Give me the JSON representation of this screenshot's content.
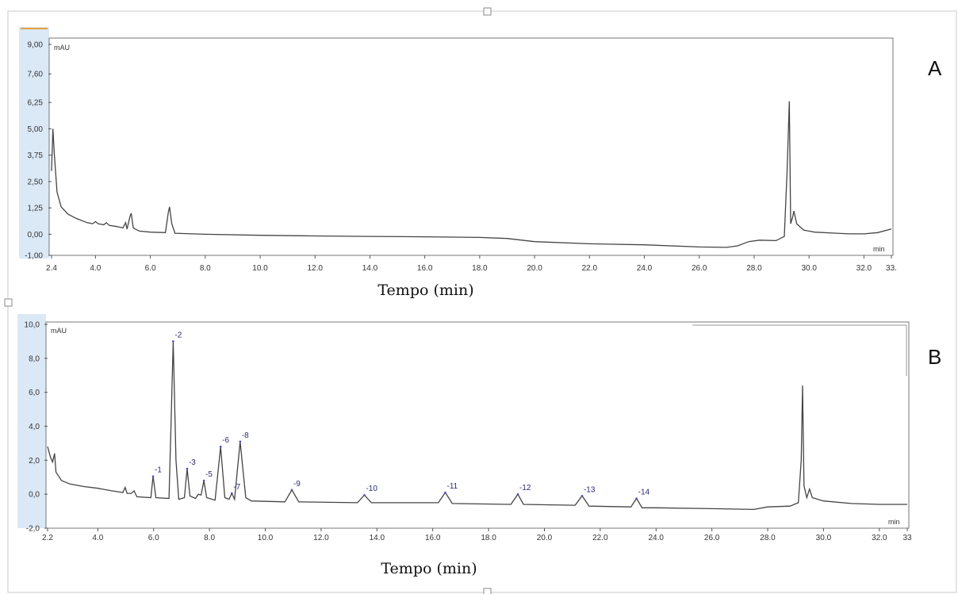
{
  "colors": {
    "trace": "#444444",
    "axis_band": "#dbe8f6",
    "peak_label": "#2a2a7a",
    "baseline_marker": "#4a4ad0"
  },
  "chart_data": [
    {
      "type": "line",
      "panel": "A",
      "xlabel": "Tempo (min)",
      "y_unit": "mAU",
      "x_unit": "min",
      "xlim": [
        2.4,
        33.0
      ],
      "ylim": [
        -1.0,
        9.0
      ],
      "x_tick_labels": [
        "2.4",
        "4.0",
        "6.0",
        "8.0",
        "10.0",
        "12.0",
        "14.0",
        "16.0",
        "18.0",
        "20.0",
        "22.0",
        "24.0",
        "26.0",
        "28.0",
        "30.0",
        "32.0",
        "33."
      ],
      "x_tick_values": [
        2.4,
        4,
        6,
        8,
        10,
        12,
        14,
        16,
        18,
        20,
        22,
        24,
        26,
        28,
        30,
        32,
        33
      ],
      "y_tick_labels": [
        "9,00",
        "7,60",
        "6,25",
        "5,00",
        "3,75",
        "2,50",
        "1,25",
        "0,00",
        "-1,00"
      ],
      "y_tick_values": [
        9.0,
        7.6,
        6.25,
        5.0,
        3.75,
        2.5,
        1.25,
        0.0,
        -1.0
      ],
      "series": [
        {
          "points": [
            [
              2.4,
              3.0
            ],
            [
              2.45,
              5.0
            ],
            [
              2.5,
              3.8
            ],
            [
              2.6,
              2.0
            ],
            [
              2.75,
              1.3
            ],
            [
              3.0,
              0.95
            ],
            [
              3.3,
              0.75
            ],
            [
              3.7,
              0.55
            ],
            [
              3.9,
              0.5
            ],
            [
              4.0,
              0.6
            ],
            [
              4.1,
              0.5
            ],
            [
              4.3,
              0.45
            ],
            [
              4.4,
              0.55
            ],
            [
              4.5,
              0.42
            ],
            [
              4.8,
              0.36
            ],
            [
              5.0,
              0.3
            ],
            [
              5.1,
              0.55
            ],
            [
              5.15,
              0.25
            ],
            [
              5.25,
              0.8
            ],
            [
              5.3,
              1.0
            ],
            [
              5.38,
              0.3
            ],
            [
              5.6,
              0.15
            ],
            [
              6.0,
              0.1
            ],
            [
              6.55,
              0.08
            ],
            [
              6.65,
              1.0
            ],
            [
              6.7,
              1.3
            ],
            [
              6.78,
              0.5
            ],
            [
              6.9,
              0.05
            ],
            [
              8.0,
              0.0
            ],
            [
              10.0,
              -0.05
            ],
            [
              12.0,
              -0.08
            ],
            [
              14.0,
              -0.1
            ],
            [
              16.0,
              -0.12
            ],
            [
              18.0,
              -0.15
            ],
            [
              19.0,
              -0.2
            ],
            [
              20.0,
              -0.35
            ],
            [
              22.0,
              -0.45
            ],
            [
              24.0,
              -0.5
            ],
            [
              26.0,
              -0.6
            ],
            [
              27.0,
              -0.62
            ],
            [
              27.4,
              -0.55
            ],
            [
              27.8,
              -0.35
            ],
            [
              28.2,
              -0.28
            ],
            [
              28.8,
              -0.3
            ],
            [
              29.1,
              -0.1
            ],
            [
              29.2,
              3.0
            ],
            [
              29.28,
              6.3
            ],
            [
              29.33,
              0.5
            ],
            [
              29.4,
              0.8
            ],
            [
              29.45,
              1.1
            ],
            [
              29.55,
              0.5
            ],
            [
              29.8,
              0.2
            ],
            [
              30.2,
              0.1
            ],
            [
              31.0,
              0.05
            ],
            [
              31.5,
              0.02
            ],
            [
              32.0,
              0.02
            ],
            [
              32.5,
              0.08
            ],
            [
              33.0,
              0.25
            ]
          ]
        }
      ]
    },
    {
      "type": "line",
      "panel": "B",
      "xlabel": "Tempo (min)",
      "y_unit": "mAU",
      "x_unit": "min",
      "xlim": [
        2.2,
        33.0
      ],
      "ylim": [
        -2.0,
        10.0
      ],
      "x_tick_labels": [
        "2.2",
        "4.0",
        "6.0",
        "8.0",
        "10.0",
        "12.0",
        "14.0",
        "16.0",
        "18.0",
        "20.0",
        "22.0",
        "24.0",
        "26.0",
        "28.0",
        "30.0",
        "32.0",
        "33"
      ],
      "x_tick_values": [
        2.2,
        4,
        6,
        8,
        10,
        12,
        14,
        16,
        18,
        20,
        22,
        24,
        26,
        28,
        30,
        32,
        33
      ],
      "y_tick_labels": [
        "10,0",
        "8,0",
        "6,0",
        "4,0",
        "2,0",
        "0,0",
        "-2,0"
      ],
      "y_tick_values": [
        10.0,
        8.0,
        6.0,
        4.0,
        2.0,
        0.0,
        -2.0
      ],
      "peaks": [
        {
          "label": "1",
          "x": 5.98,
          "y": 1.05
        },
        {
          "label": "2",
          "x": 6.7,
          "y": 9.0
        },
        {
          "label": "3",
          "x": 7.2,
          "y": 1.5
        },
        {
          "label": "5",
          "x": 7.8,
          "y": 0.8
        },
        {
          "label": "6",
          "x": 8.4,
          "y": 2.8
        },
        {
          "label": "7",
          "x": 8.8,
          "y": 0.05
        },
        {
          "label": "8",
          "x": 9.1,
          "y": 3.1
        },
        {
          "label": "9",
          "x": 10.95,
          "y": 0.25
        },
        {
          "label": "10",
          "x": 13.55,
          "y": -0.05
        },
        {
          "label": "11",
          "x": 16.45,
          "y": 0.1
        },
        {
          "label": "12",
          "x": 19.05,
          "y": 0.0
        },
        {
          "label": "13",
          "x": 21.35,
          "y": -0.1
        },
        {
          "label": "14",
          "x": 23.3,
          "y": -0.25
        }
      ],
      "series": [
        {
          "points": [
            [
              2.2,
              2.8
            ],
            [
              2.3,
              2.2
            ],
            [
              2.38,
              1.9
            ],
            [
              2.45,
              2.4
            ],
            [
              2.5,
              1.3
            ],
            [
              2.7,
              0.8
            ],
            [
              3.0,
              0.6
            ],
            [
              3.5,
              0.45
            ],
            [
              4.0,
              0.35
            ],
            [
              4.5,
              0.2
            ],
            [
              4.9,
              0.1
            ],
            [
              4.98,
              0.4
            ],
            [
              5.05,
              0.05
            ],
            [
              5.2,
              0.05
            ],
            [
              5.3,
              0.2
            ],
            [
              5.4,
              -0.15
            ],
            [
              5.9,
              -0.2
            ],
            [
              5.98,
              1.05
            ],
            [
              6.08,
              -0.2
            ],
            [
              6.55,
              -0.25
            ],
            [
              6.62,
              4.0
            ],
            [
              6.7,
              9.0
            ],
            [
              6.8,
              2.0
            ],
            [
              6.9,
              -0.3
            ],
            [
              7.1,
              -0.2
            ],
            [
              7.2,
              1.5
            ],
            [
              7.3,
              -0.1
            ],
            [
              7.5,
              -0.25
            ],
            [
              7.6,
              0.0
            ],
            [
              7.7,
              -0.05
            ],
            [
              7.8,
              0.8
            ],
            [
              7.9,
              -0.2
            ],
            [
              8.2,
              -0.35
            ],
            [
              8.4,
              2.8
            ],
            [
              8.55,
              -0.2
            ],
            [
              8.7,
              -0.3
            ],
            [
              8.8,
              0.05
            ],
            [
              8.9,
              -0.3
            ],
            [
              9.1,
              3.1
            ],
            [
              9.3,
              -0.2
            ],
            [
              9.5,
              -0.4
            ],
            [
              10.7,
              -0.45
            ],
            [
              10.95,
              0.25
            ],
            [
              11.2,
              -0.45
            ],
            [
              13.3,
              -0.5
            ],
            [
              13.55,
              -0.05
            ],
            [
              13.8,
              -0.5
            ],
            [
              16.2,
              -0.5
            ],
            [
              16.45,
              0.1
            ],
            [
              16.7,
              -0.55
            ],
            [
              18.8,
              -0.6
            ],
            [
              19.05,
              0.0
            ],
            [
              19.25,
              -0.6
            ],
            [
              21.1,
              -0.65
            ],
            [
              21.35,
              -0.1
            ],
            [
              21.6,
              -0.7
            ],
            [
              23.1,
              -0.75
            ],
            [
              23.3,
              -0.25
            ],
            [
              23.5,
              -0.8
            ],
            [
              24.0,
              -0.8
            ],
            [
              26.0,
              -0.85
            ],
            [
              27.5,
              -0.9
            ],
            [
              28.0,
              -0.75
            ],
            [
              28.8,
              -0.7
            ],
            [
              29.1,
              -0.5
            ],
            [
              29.2,
              2.0
            ],
            [
              29.25,
              6.4
            ],
            [
              29.3,
              0.5
            ],
            [
              29.4,
              -0.2
            ],
            [
              29.5,
              0.3
            ],
            [
              29.6,
              -0.2
            ],
            [
              30.0,
              -0.4
            ],
            [
              31.0,
              -0.55
            ],
            [
              32.0,
              -0.6
            ],
            [
              33.0,
              -0.6
            ]
          ]
        }
      ]
    }
  ]
}
